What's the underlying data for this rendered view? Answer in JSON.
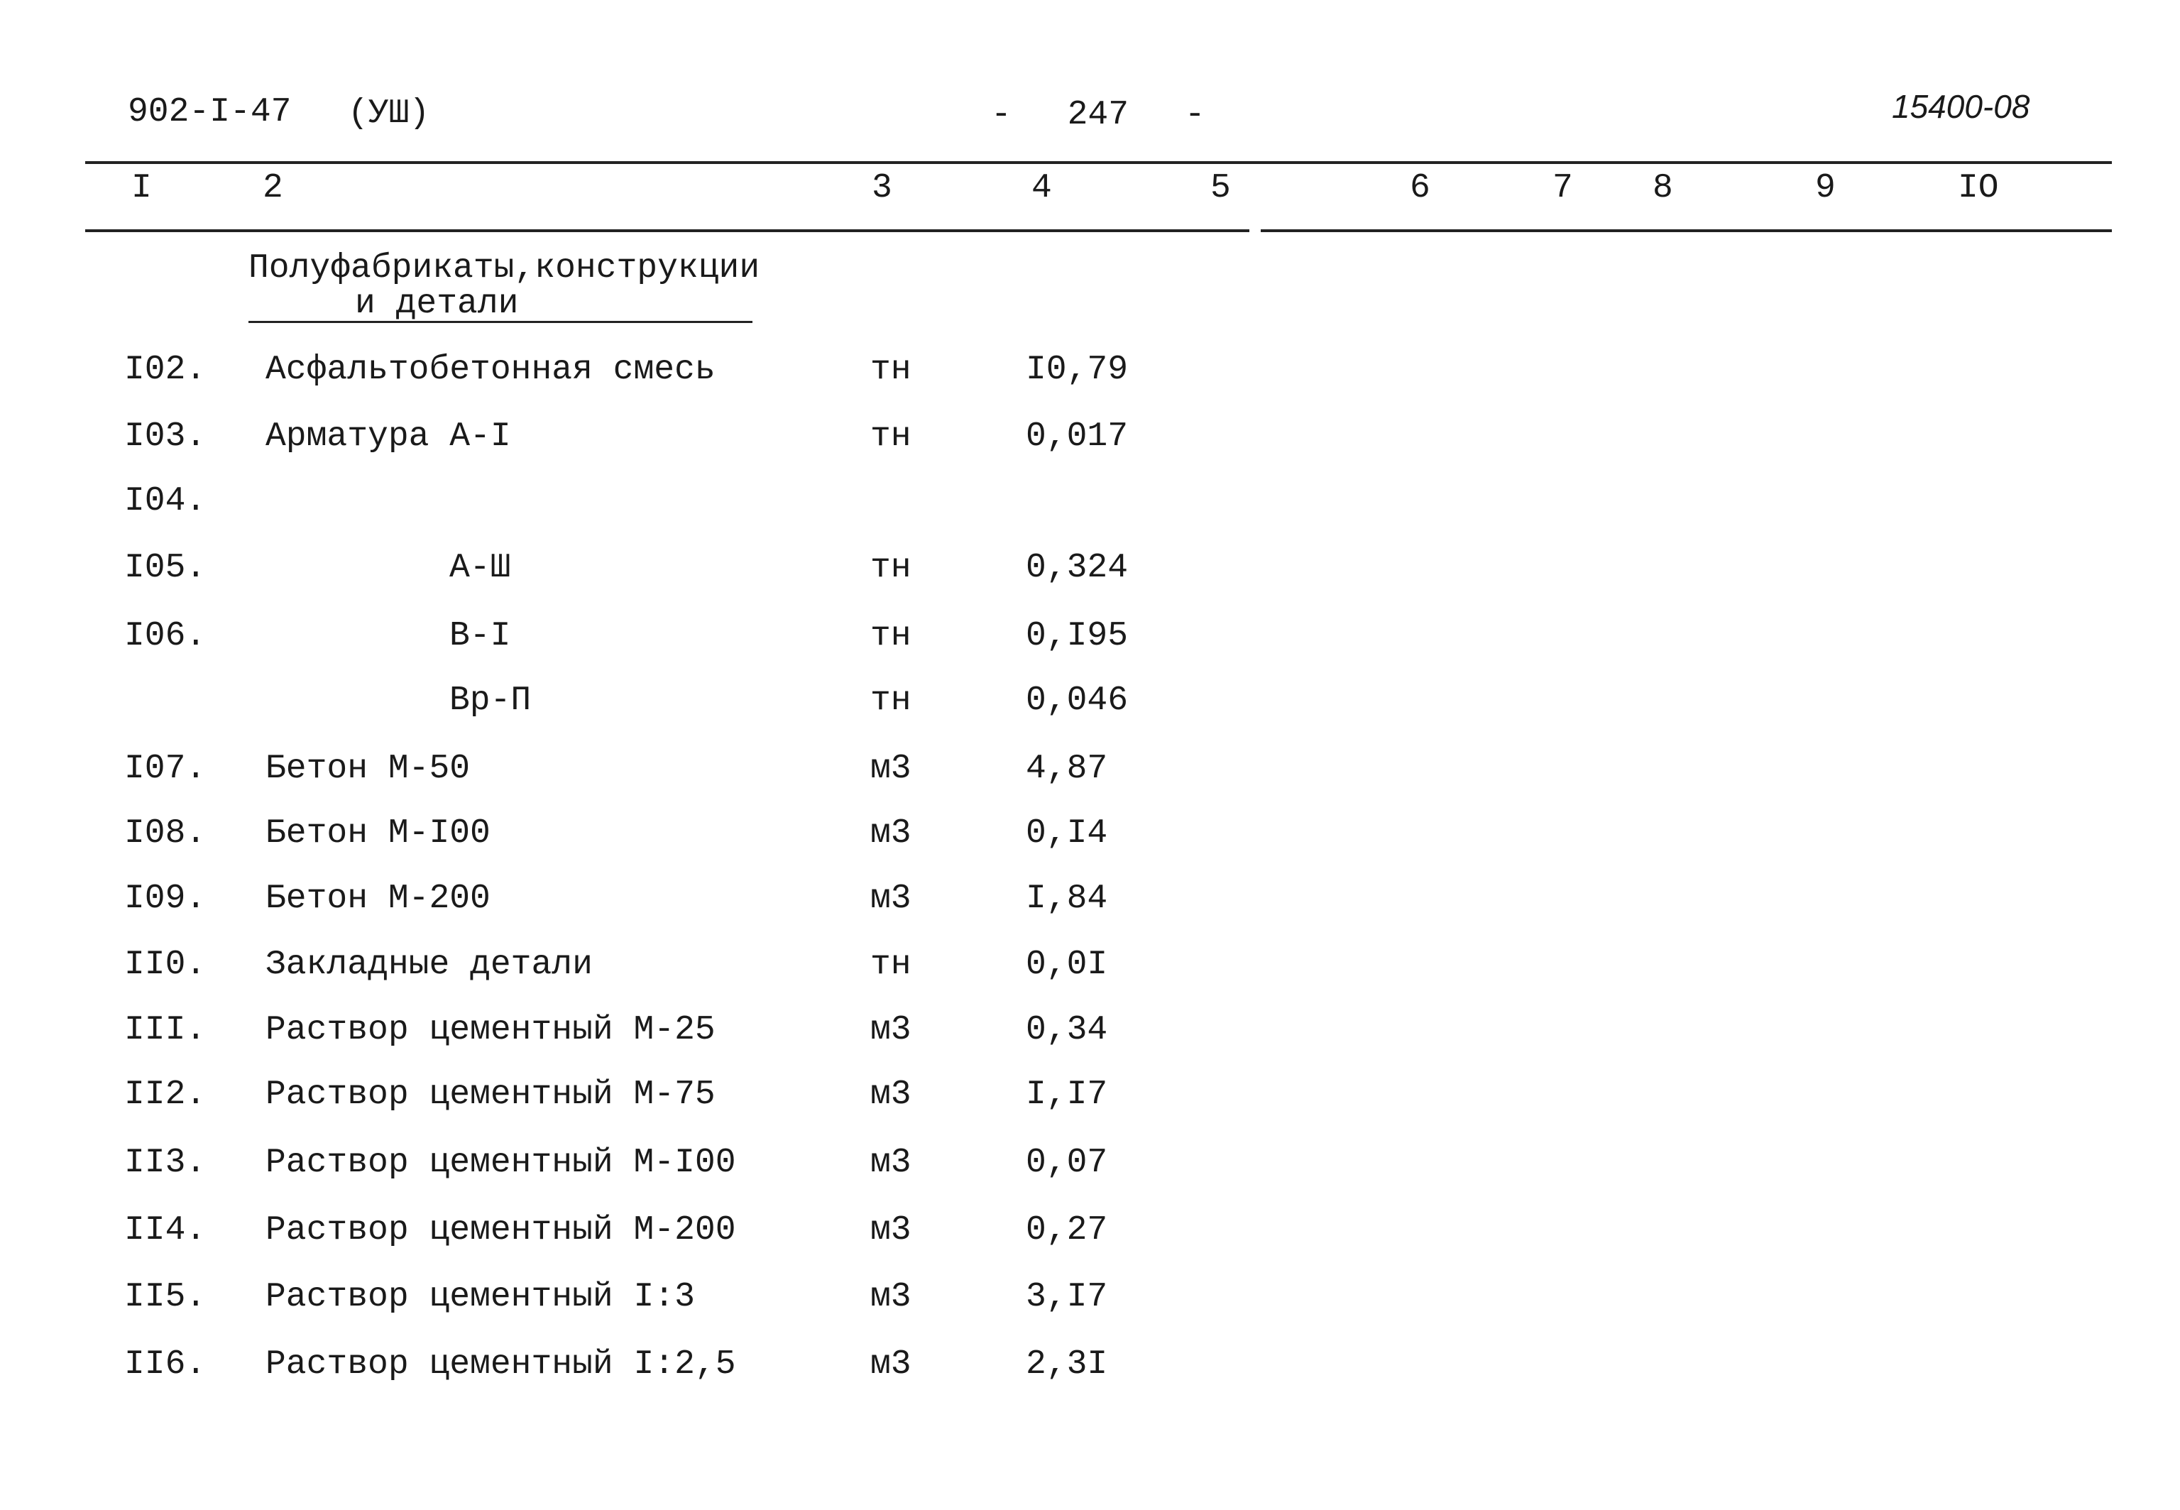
{
  "header": {
    "code": "902-I-47",
    "series": "(УШ)",
    "page": "- 247 -",
    "doc_number": "15400-08"
  },
  "columns": [
    "I",
    "2",
    "3",
    "4",
    "5",
    "6",
    "7",
    "8",
    "9",
    "IO"
  ],
  "section": {
    "title_line1": "Полуфабрикаты,конструкции",
    "title_line2": "и детали"
  },
  "rows": [
    {
      "num": "I02.",
      "name": "Асфальтобетонная смесь",
      "unit": "тн",
      "value": "I0,79"
    },
    {
      "num": "I03.",
      "name": "Арматура А-I",
      "unit": "тн",
      "value": "0,017"
    },
    {
      "num": "I04."
    },
    {
      "num": "I05.",
      "name": "А-Ш",
      "unit": "тн",
      "value": "0,324"
    },
    {
      "num": "I06.",
      "name": "В-I",
      "unit": "тн",
      "value": "0,I95"
    },
    {
      "name": "Вр-П",
      "unit": "тн",
      "value": "0,046"
    },
    {
      "num": "I07.",
      "name": "Бетон М-50",
      "unit": "м3",
      "value": "4,87"
    },
    {
      "num": "I08.",
      "name": "Бетон М-I00",
      "unit": "м3",
      "value": "0,I4"
    },
    {
      "num": "I09.",
      "name": "Бетон М-200",
      "unit": "м3",
      "value": "I,84"
    },
    {
      "num": "II0.",
      "name": "Закладные детали",
      "unit": "тн",
      "value": "0,0I"
    },
    {
      "num": "III.",
      "name": "Раствор цементный М-25",
      "unit": "м3",
      "value": "0,34"
    },
    {
      "num": "II2.",
      "name": "Раствор цементный М-75",
      "unit": "м3",
      "value": "I,I7"
    },
    {
      "num": "II3.",
      "name": "Раствор цементный М-I00",
      "unit": "м3",
      "value": "0,07"
    },
    {
      "num": "II4.",
      "name": "Раствор цементный М-200",
      "unit": "м3",
      "value": "0,27"
    },
    {
      "num": "II5.",
      "name": "Раствор цементный I:3",
      "unit": "м3",
      "value": "3,I7"
    },
    {
      "num": "II6.",
      "name": "Раствор цементный I:2,5",
      "unit": "м3",
      "value": "2,3I"
    }
  ]
}
